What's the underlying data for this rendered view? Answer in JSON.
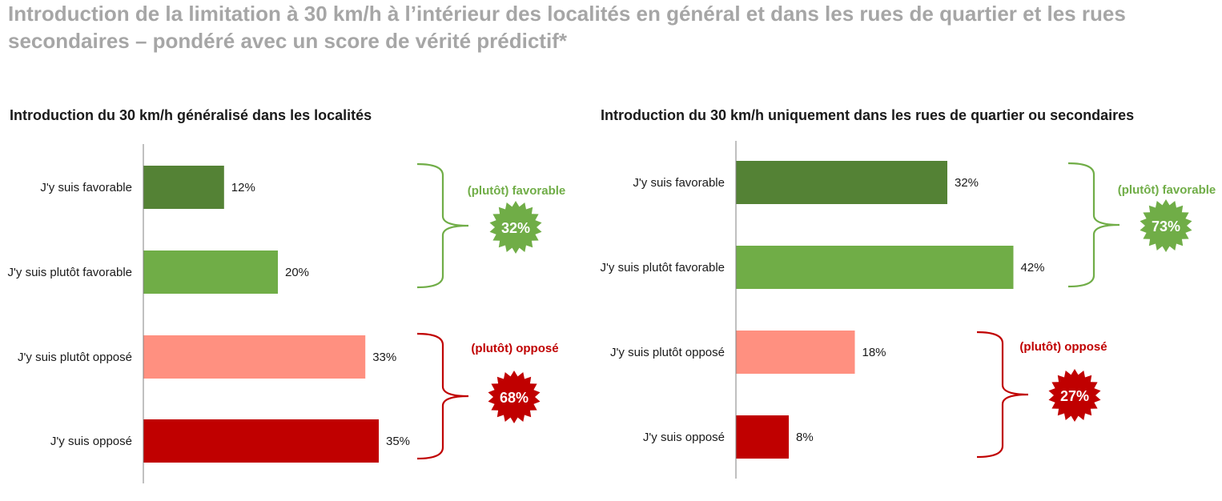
{
  "title": "Introduction de la limitation à 30 km/h à l’intérieur des localités en général et dans les rues de quartier et les rues secondaires – pondéré avec un score de vérité prédictif*",
  "colors": {
    "favorable": "#548235",
    "plutot_favorable": "#70ad47",
    "plutot_oppose": "#ff9080",
    "oppose": "#c00000",
    "group_favorable": "#70ad47",
    "group_oppose": "#c00000",
    "axis": "#808080"
  },
  "chart_data": [
    {
      "type": "bar",
      "orientation": "horizontal",
      "title": "Introduction du 30 km/h généralisé dans les localités",
      "categories": [
        "J'y suis favorable",
        "J'y suis plutôt favorable",
        "J'y suis plutôt opposé",
        "J'y suis opposé"
      ],
      "values": [
        12,
        20,
        33,
        35
      ],
      "value_labels": [
        "12%",
        "20%",
        "33%",
        "35%"
      ],
      "bar_colors": [
        "#548235",
        "#70ad47",
        "#ff9080",
        "#c00000"
      ],
      "xlim": [
        0,
        45
      ],
      "groups": [
        {
          "label": "(plutôt) favorable",
          "value": 32,
          "value_label": "32%",
          "color": "#70ad47"
        },
        {
          "label": "(plutôt) opposé",
          "value": 68,
          "value_label": "68%",
          "color": "#c00000"
        }
      ]
    },
    {
      "type": "bar",
      "orientation": "horizontal",
      "title": "Introduction du 30 km/h uniquement dans les rues de quartier ou secondaires",
      "categories": [
        "J'y suis favorable",
        "J'y suis plutôt favorable",
        "J'y suis plutôt opposé",
        "J'y suis opposé"
      ],
      "values": [
        32,
        42,
        18,
        8
      ],
      "value_labels": [
        "32%",
        "42%",
        "18%",
        "8%"
      ],
      "bar_colors": [
        "#548235",
        "#70ad47",
        "#ff9080",
        "#c00000"
      ],
      "xlim": [
        0,
        45
      ],
      "groups": [
        {
          "label": "(plutôt) favorable",
          "value": 73,
          "value_label": "73%",
          "color": "#70ad47"
        },
        {
          "label": "(plutôt) opposé",
          "value": 27,
          "value_label": "27%",
          "color": "#c00000"
        }
      ]
    }
  ]
}
